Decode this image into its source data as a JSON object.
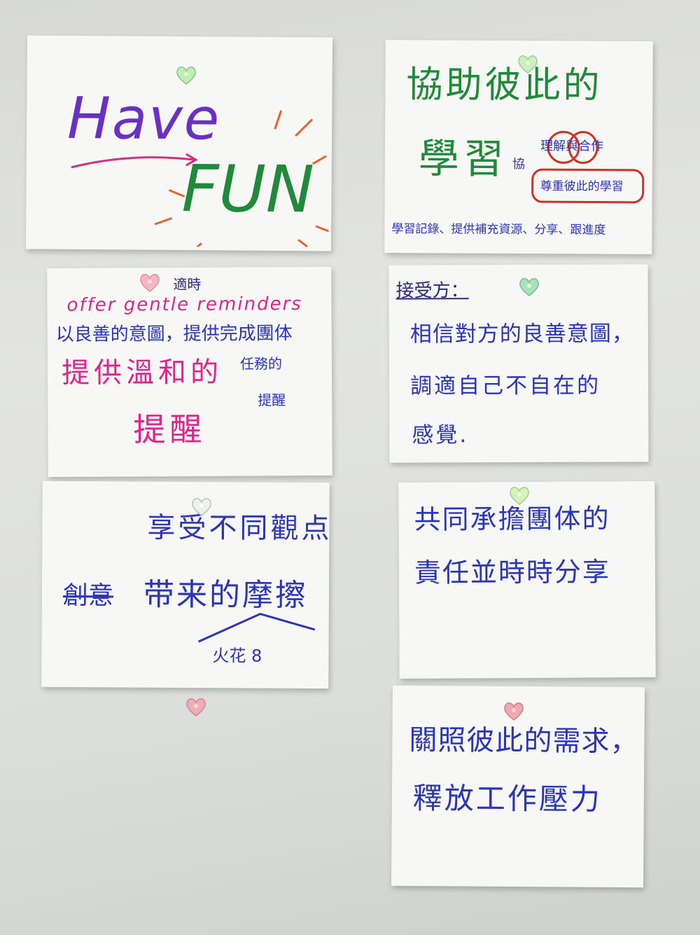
{
  "notes": {
    "have_fun": {
      "line1": "Have",
      "line2": "FUN"
    },
    "help_learning": {
      "title": "協助彼此的",
      "big": "學習",
      "side_note": "協",
      "tag1": "理解與合作",
      "tag2": "尊重彼此的學習",
      "bottom": "學習記錄、提供補充資源、分享、跟進度"
    },
    "gentle": {
      "top_small": "適時",
      "english": "offer gentle reminders",
      "line1": "以良善的意圖，提供完成團体",
      "line2": "提供溫和的",
      "line2_side": "任務的",
      "line3_side": "提醒",
      "line4": "提醒"
    },
    "receiver": {
      "heading": "接受方：",
      "line1": "相信對方的良善意圖，",
      "line2": "調適自己不自在的",
      "line3": "感覺."
    },
    "enjoy": {
      "line1": "享受不同觀点",
      "struck": "創意",
      "line2": "带来的摩擦",
      "footnote": "火花 8"
    },
    "share": {
      "line1": "共同承擔團体的",
      "line2": "責任並時時分享"
    },
    "care": {
      "line1": "關照彼此的需求，",
      "line2": "釋放工作壓力"
    }
  },
  "colors": {
    "board": "#dcdedc",
    "paper": "#f7f7f5",
    "marker_blue": "#2a35b8",
    "marker_green": "#1f8a3a",
    "marker_pink": "#e0248c",
    "marker_purple": "#6a2fc4",
    "marker_red": "#d43020",
    "magnet_green": "#a8e8a0",
    "magnet_pink": "#f2a0b0",
    "magnet_clear": "#e8ece8"
  },
  "icons": [
    "heart-magnet-icon"
  ]
}
